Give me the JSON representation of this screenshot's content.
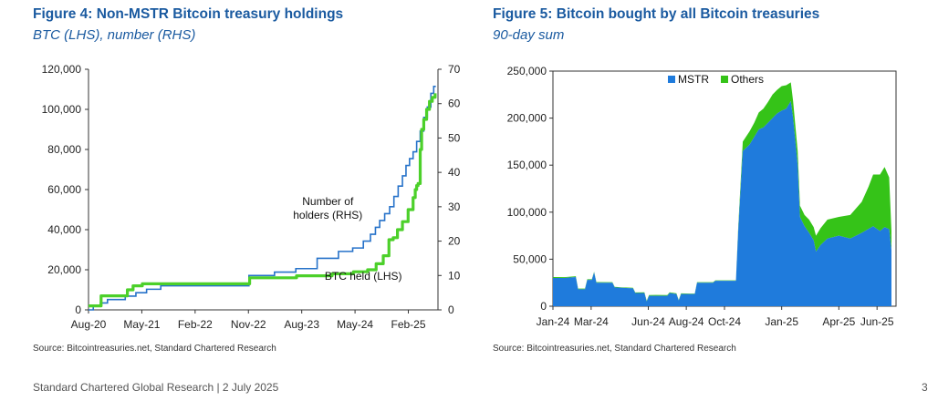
{
  "figure4": {
    "title": "Figure 4: Non-MSTR Bitcoin treasury holdings",
    "subtitle": "BTC (LHS), number (RHS)",
    "source": "Source: Bitcointreasuries.net, Standard Chartered Research"
  },
  "figure5": {
    "title": "Figure 5: Bitcoin bought by all Bitcoin treasuries",
    "subtitle": "90-day sum",
    "source": "Source: Bitcointreasuries.net, Standard Chartered Research"
  },
  "footer": {
    "left": "Standard Chartered Global Research | 2 July 2025",
    "page_number": "3"
  },
  "colors": {
    "btc_line": "#4cd02a",
    "holders_line": "#2672c9",
    "mstr": "#1f7bdc",
    "others": "#35c318",
    "title_blue": "#1a5aa0"
  },
  "chart_data": [
    {
      "id": "figure4",
      "type": "line",
      "title": "Figure 4: Non-MSTR Bitcoin treasury holdings",
      "x_range": [
        2020.583,
        2025.5
      ],
      "x_ticks": [
        {
          "label": "Aug-20",
          "t": 2020.583
        },
        {
          "label": "May-21",
          "t": 2021.333
        },
        {
          "label": "Feb-22",
          "t": 2022.083
        },
        {
          "label": "Nov-22",
          "t": 2022.833
        },
        {
          "label": "Aug-23",
          "t": 2023.583
        },
        {
          "label": "May-24",
          "t": 2024.333
        },
        {
          "label": "Feb-25",
          "t": 2025.083
        }
      ],
      "y_left": {
        "min": 0,
        "max": 120000,
        "ticks": [
          0,
          20000,
          40000,
          60000,
          80000,
          100000,
          120000
        ],
        "tick_labels": [
          "0",
          "20,000",
          "40,000",
          "60,000",
          "80,000",
          "100,000",
          "120,000"
        ]
      },
      "y_right": {
        "min": 0,
        "max": 70,
        "ticks": [
          0,
          10,
          20,
          30,
          40,
          50,
          60,
          70
        ],
        "tick_labels": [
          "0",
          "10",
          "20",
          "30",
          "40",
          "50",
          "60",
          "70"
        ]
      },
      "annotations": [
        {
          "text": "Number of",
          "anchor_t": 2023.95,
          "anchor_y_rhs": 30.5
        },
        {
          "text": "holders (RHS)",
          "anchor_t": 2023.95,
          "anchor_y_rhs": 26.5
        },
        {
          "text": "BTC held (LHS)",
          "anchor_t": 2024.45,
          "anchor_y_rhs": 8.7
        }
      ],
      "series": [
        {
          "name": "BTC held (LHS)",
          "axis": "left",
          "step": true,
          "points": [
            [
              2020.583,
              2000
            ],
            [
              2020.75,
              2000
            ],
            [
              2020.76,
              7000
            ],
            [
              2021.12,
              7000
            ],
            [
              2021.13,
              10000
            ],
            [
              2021.2,
              10000
            ],
            [
              2021.21,
              12000
            ],
            [
              2021.33,
              12000
            ],
            [
              2021.34,
              13000
            ],
            [
              2022.84,
              13000
            ],
            [
              2022.85,
              16000
            ],
            [
              2023.5,
              16000
            ],
            [
              2023.51,
              17000
            ],
            [
              2024.0,
              17000
            ],
            [
              2024.01,
              18000
            ],
            [
              2024.3,
              18000
            ],
            [
              2024.31,
              19000
            ],
            [
              2024.5,
              19000
            ],
            [
              2024.51,
              20000
            ],
            [
              2024.62,
              20000
            ],
            [
              2024.63,
              23000
            ],
            [
              2024.72,
              23000
            ],
            [
              2024.73,
              27000
            ],
            [
              2024.8,
              27000
            ],
            [
              2024.81,
              35000
            ],
            [
              2024.87,
              36000
            ],
            [
              2024.93,
              40000
            ],
            [
              2025.0,
              44000
            ],
            [
              2025.08,
              50000
            ],
            [
              2025.15,
              56000
            ],
            [
              2025.18,
              60000
            ],
            [
              2025.2,
              62000
            ],
            [
              2025.22,
              63000
            ],
            [
              2025.25,
              80000
            ],
            [
              2025.27,
              90000
            ],
            [
              2025.3,
              95000
            ],
            [
              2025.34,
              100000
            ],
            [
              2025.38,
              104000
            ],
            [
              2025.42,
              106000
            ],
            [
              2025.46,
              108000
            ]
          ]
        },
        {
          "name": "Number of holders (RHS)",
          "axis": "right",
          "step": true,
          "points": [
            [
              2020.583,
              0
            ],
            [
              2020.65,
              1
            ],
            [
              2020.75,
              2
            ],
            [
              2020.85,
              3
            ],
            [
              2021.1,
              4
            ],
            [
              2021.25,
              5
            ],
            [
              2021.4,
              6
            ],
            [
              2021.6,
              7
            ],
            [
              2022.84,
              10
            ],
            [
              2023.2,
              11
            ],
            [
              2023.5,
              12
            ],
            [
              2023.8,
              15
            ],
            [
              2024.1,
              17
            ],
            [
              2024.3,
              18
            ],
            [
              2024.45,
              20
            ],
            [
              2024.55,
              22
            ],
            [
              2024.62,
              24
            ],
            [
              2024.68,
              26
            ],
            [
              2024.75,
              28
            ],
            [
              2024.82,
              30
            ],
            [
              2024.88,
              33
            ],
            [
              2024.94,
              36
            ],
            [
              2025.0,
              39
            ],
            [
              2025.05,
              42
            ],
            [
              2025.1,
              44
            ],
            [
              2025.15,
              46
            ],
            [
              2025.2,
              49
            ],
            [
              2025.25,
              52
            ],
            [
              2025.3,
              56
            ],
            [
              2025.35,
              59
            ],
            [
              2025.4,
              63
            ],
            [
              2025.44,
              65
            ],
            [
              2025.47,
              65
            ]
          ]
        }
      ]
    },
    {
      "id": "figure5",
      "type": "area",
      "stacked": true,
      "title": "Figure 5: Bitcoin bought by all Bitcoin treasuries",
      "x_range": [
        2024.0,
        2025.5
      ],
      "x_ticks": [
        {
          "label": "Jan-24",
          "t": 2024.0
        },
        {
          "label": "Mar-24",
          "t": 2024.167
        },
        {
          "label": "Jun-24",
          "t": 2024.417
        },
        {
          "label": "Aug-24",
          "t": 2024.583
        },
        {
          "label": "Oct-24",
          "t": 2024.75
        },
        {
          "label": "Jan-25",
          "t": 2025.0
        },
        {
          "label": "Apr-25",
          "t": 2025.25
        },
        {
          "label": "Jun-25",
          "t": 2025.417
        }
      ],
      "y": {
        "min": 0,
        "max": 250000,
        "ticks": [
          0,
          50000,
          100000,
          150000,
          200000,
          250000
        ],
        "tick_labels": [
          "0",
          "50,000",
          "100,000",
          "150,000",
          "200,000",
          "250,000"
        ]
      },
      "legend": {
        "placement": "top-center",
        "items": [
          "MSTR",
          "Others"
        ]
      },
      "series": [
        {
          "name": "MSTR",
          "points": [
            [
              2024.0,
              30000
            ],
            [
              2024.05,
              30000
            ],
            [
              2024.1,
              31000
            ],
            [
              2024.11,
              18000
            ],
            [
              2024.14,
              18000
            ],
            [
              2024.15,
              28000
            ],
            [
              2024.17,
              28000
            ],
            [
              2024.18,
              36000
            ],
            [
              2024.19,
              25000
            ],
            [
              2024.26,
              25000
            ],
            [
              2024.27,
              20000
            ],
            [
              2024.35,
              19000
            ],
            [
              2024.36,
              14000
            ],
            [
              2024.4,
              14000
            ],
            [
              2024.41,
              5000
            ],
            [
              2024.42,
              11000
            ],
            [
              2024.5,
              11000
            ],
            [
              2024.51,
              14000
            ],
            [
              2024.54,
              13000
            ],
            [
              2024.55,
              6000
            ],
            [
              2024.56,
              13000
            ],
            [
              2024.62,
              13000
            ],
            [
              2024.63,
              25000
            ],
            [
              2024.7,
              25000
            ],
            [
              2024.71,
              27000
            ],
            [
              2024.8,
              27000
            ],
            [
              2024.81,
              80000
            ],
            [
              2024.83,
              165000
            ],
            [
              2024.86,
              172000
            ],
            [
              2024.88,
              180000
            ],
            [
              2024.9,
              188000
            ],
            [
              2024.92,
              190000
            ],
            [
              2024.94,
              195000
            ],
            [
              2024.96,
              200000
            ],
            [
              2024.98,
              205000
            ],
            [
              2025.0,
              208000
            ],
            [
              2025.02,
              210000
            ],
            [
              2025.04,
              218000
            ],
            [
              2025.05,
              200000
            ],
            [
              2025.07,
              150000
            ],
            [
              2025.08,
              95000
            ],
            [
              2025.1,
              85000
            ],
            [
              2025.12,
              78000
            ],
            [
              2025.14,
              70000
            ],
            [
              2025.15,
              58000
            ],
            [
              2025.17,
              65000
            ],
            [
              2025.2,
              72000
            ],
            [
              2025.25,
              75000
            ],
            [
              2025.3,
              72000
            ],
            [
              2025.35,
              78000
            ],
            [
              2025.4,
              85000
            ],
            [
              2025.43,
              80000
            ],
            [
              2025.45,
              84000
            ],
            [
              2025.47,
              82000
            ],
            [
              2025.48,
              60000
            ]
          ]
        },
        {
          "name": "Others",
          "points": [
            [
              2024.0,
              1000
            ],
            [
              2024.3,
              500
            ],
            [
              2024.45,
              1000
            ],
            [
              2024.6,
              500
            ],
            [
              2024.8,
              500
            ],
            [
              2024.83,
              10000
            ],
            [
              2024.86,
              14000
            ],
            [
              2024.88,
              15000
            ],
            [
              2024.9,
              18000
            ],
            [
              2024.92,
              20000
            ],
            [
              2024.94,
              22000
            ],
            [
              2024.96,
              25000
            ],
            [
              2024.98,
              25000
            ],
            [
              2025.0,
              26000
            ],
            [
              2025.02,
              25000
            ],
            [
              2025.04,
              20000
            ],
            [
              2025.05,
              18000
            ],
            [
              2025.07,
              15000
            ],
            [
              2025.08,
              12000
            ],
            [
              2025.1,
              12000
            ],
            [
              2025.12,
              14000
            ],
            [
              2025.14,
              14000
            ],
            [
              2025.15,
              17000
            ],
            [
              2025.17,
              18000
            ],
            [
              2025.2,
              20000
            ],
            [
              2025.25,
              20000
            ],
            [
              2025.3,
              25000
            ],
            [
              2025.35,
              33000
            ],
            [
              2025.38,
              45000
            ],
            [
              2025.4,
              55000
            ],
            [
              2025.43,
              60000
            ],
            [
              2025.45,
              64000
            ],
            [
              2025.47,
              55000
            ],
            [
              2025.48,
              20000
            ]
          ]
        }
      ]
    }
  ]
}
